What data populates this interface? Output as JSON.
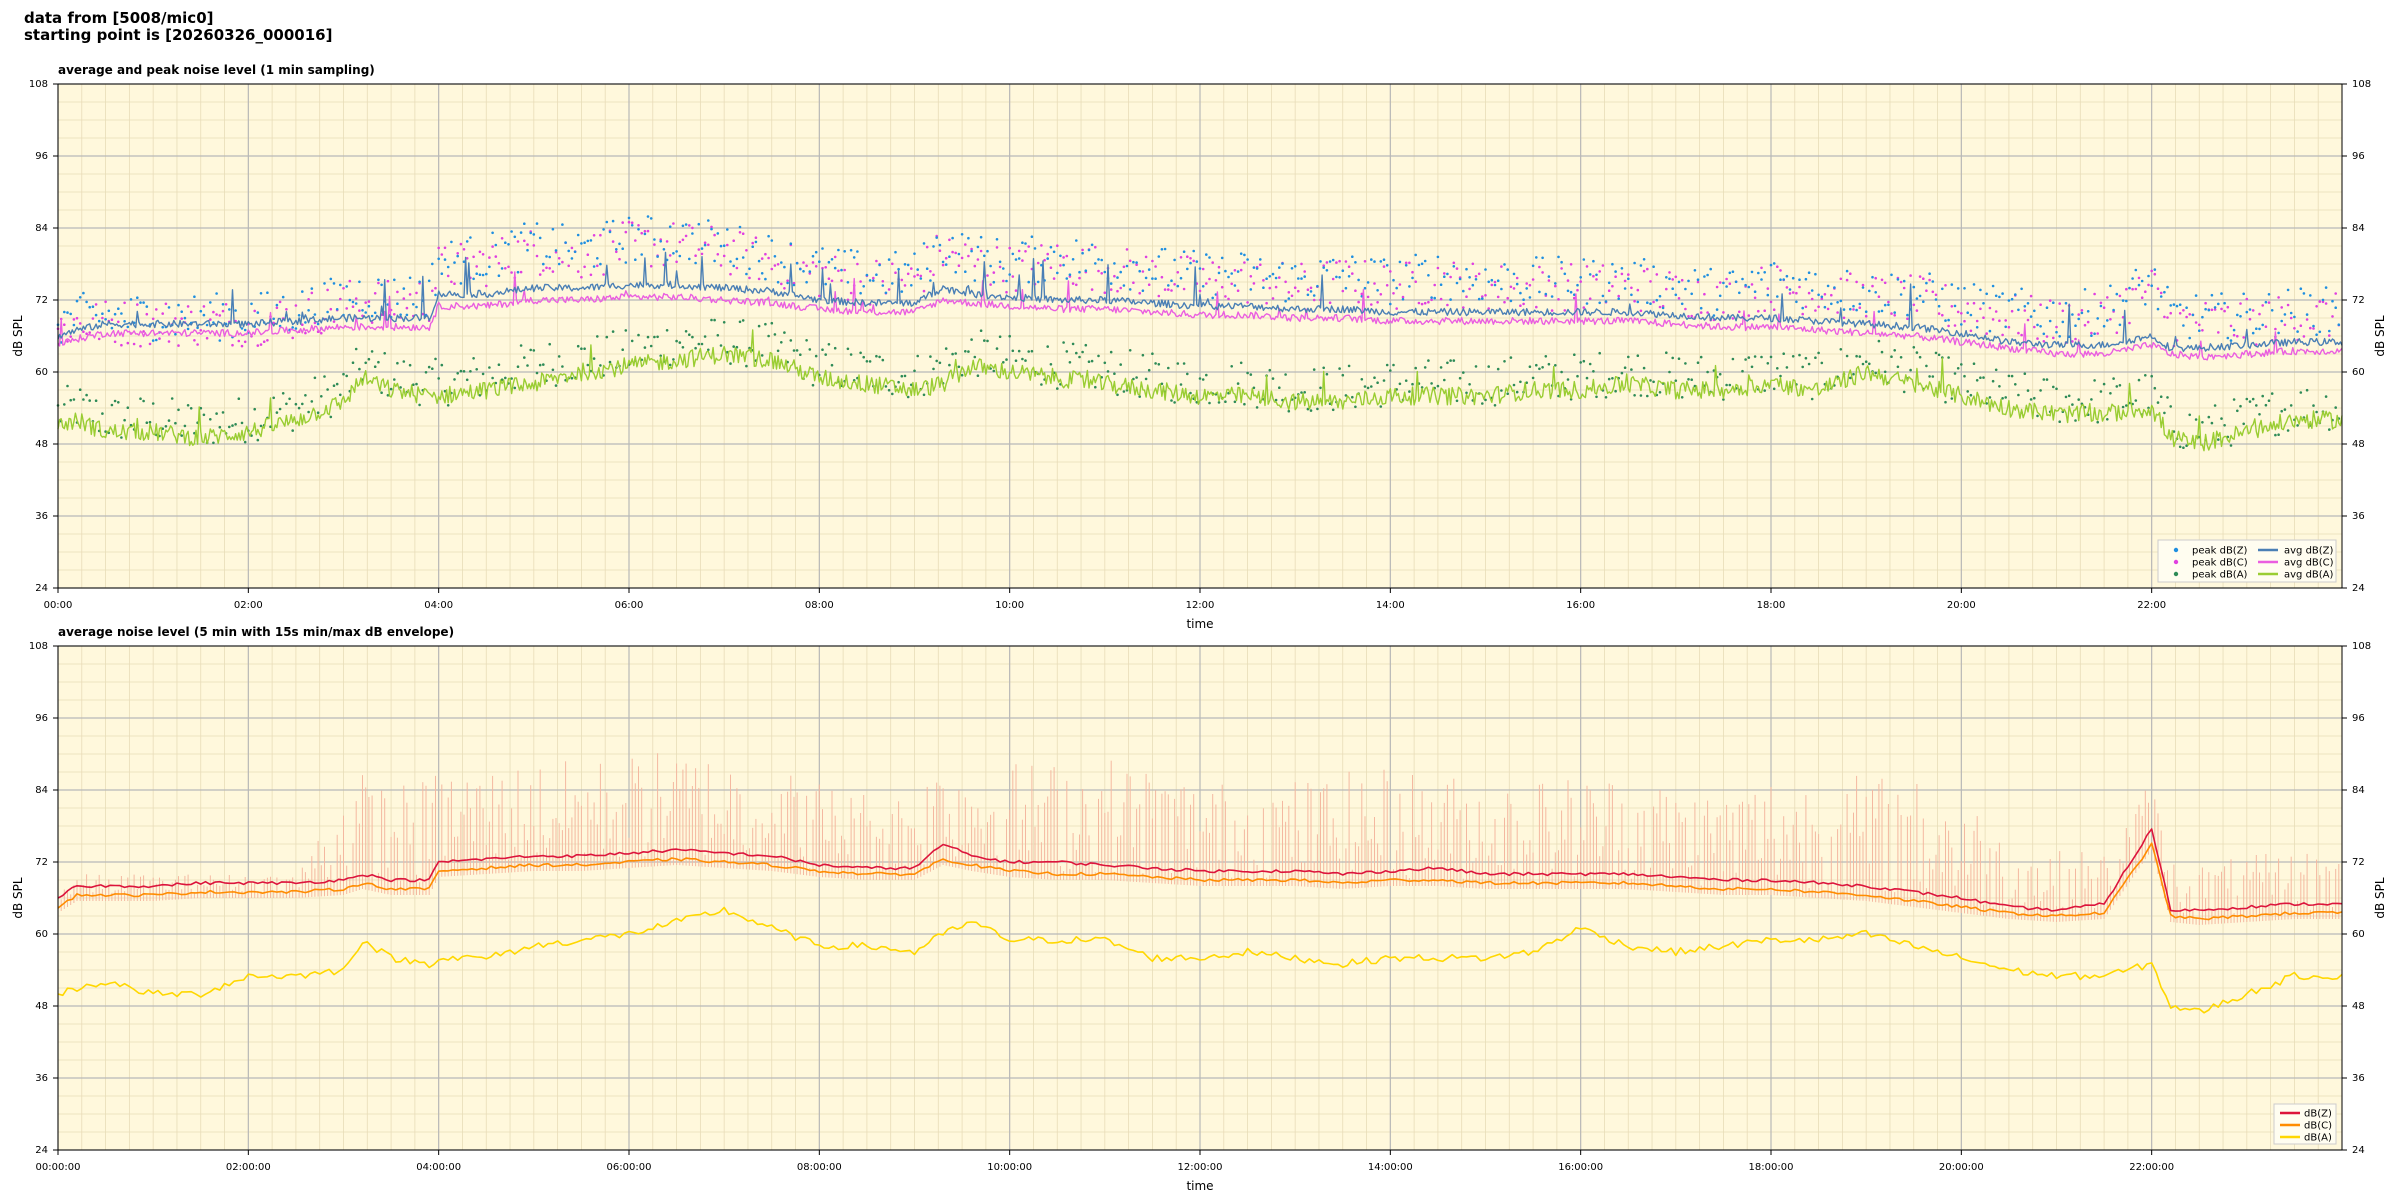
{
  "header": {
    "line1": "data from [5008/mic0]",
    "line2": "starting point is [20260326_000016]"
  },
  "colors": {
    "plot_bg": "#fff8dc",
    "grid_major": "#b8b8b8",
    "grid_minor": "#e8dcb8",
    "peakZ": "#1f8fe0",
    "peakC": "#e040e0",
    "peakA": "#2e8b57",
    "avgZ": "#4a7fb5",
    "avgC": "#ea5ee0",
    "avgA": "#9acd32",
    "dBZ": "#dc143c",
    "dBC": "#ff8c00",
    "dBA": "#ffd700",
    "envelope": "#f4b8a0"
  },
  "chart_data": [
    {
      "type": "line",
      "title": "average and peak noise level (1 min sampling)",
      "xlabel": "time",
      "ylabel": "dB SPL",
      "ylim": [
        24,
        108
      ],
      "yticks": [
        "24",
        "36",
        "48",
        "60",
        "72",
        "84",
        "96",
        "108"
      ],
      "xlim_hours": [
        0,
        24
      ],
      "xticks": [
        "00:00",
        "02:00",
        "04:00",
        "06:00",
        "08:00",
        "10:00",
        "12:00",
        "14:00",
        "16:00",
        "18:00",
        "20:00",
        "22:00"
      ],
      "grid": true,
      "legend_position": "bottom-right",
      "legend": [
        "peak dB(Z)",
        "peak dB(C)",
        "peak dB(A)",
        "avg dB(Z)",
        "avg dB(C)",
        "avg dB(A)"
      ],
      "x_hours": [
        0,
        0.2,
        0.5,
        1,
        1.5,
        2,
        2.5,
        3,
        3.2,
        3.5,
        3.9,
        4,
        4.5,
        5,
        5.5,
        6,
        6.5,
        7,
        7.5,
        8,
        8.5,
        9,
        9.3,
        9.6,
        10,
        10.5,
        11,
        11.5,
        12,
        12.5,
        13,
        13.5,
        14,
        14.5,
        15,
        15.5,
        16,
        16.5,
        17,
        17.5,
        18,
        18.5,
        19,
        19.5,
        20,
        20.5,
        21,
        21.5,
        22,
        22.2,
        22.5,
        23,
        23.5,
        24
      ],
      "series": [
        {
          "name": "avg dB(Z)",
          "values": [
            66,
            67,
            68,
            68,
            68,
            68,
            68.5,
            69,
            69,
            69,
            69,
            73,
            73,
            74,
            74,
            74.5,
            74.5,
            74,
            73.5,
            72,
            71.5,
            71.5,
            74,
            73,
            72.5,
            72,
            72,
            71.5,
            71,
            71,
            70.5,
            70.5,
            70,
            70,
            70,
            70,
            70,
            70,
            69.5,
            69,
            69,
            68.5,
            68,
            67.5,
            66.5,
            65,
            64.5,
            64.5,
            66,
            64,
            64,
            64.5,
            65,
            65
          ]
        },
        {
          "name": "avg dB(C)",
          "values": [
            64.5,
            65.5,
            66.5,
            66.5,
            66.5,
            66.5,
            67,
            67.5,
            67.5,
            67.5,
            67.5,
            71,
            71,
            72,
            72,
            72.5,
            72.5,
            72,
            71.5,
            70.5,
            70,
            70,
            72,
            71.5,
            71,
            70.5,
            70.5,
            70,
            69.5,
            69.5,
            69,
            69,
            68.5,
            68.5,
            68.5,
            68.5,
            68.5,
            68.5,
            68,
            67.5,
            67.5,
            67,
            66.5,
            66,
            65,
            64,
            63,
            63,
            64.5,
            63,
            62.5,
            63,
            63.5,
            63.5
          ]
        },
        {
          "name": "avg dB(A)",
          "values": [
            51,
            52,
            50,
            50,
            49,
            50,
            52,
            55,
            59,
            57,
            56,
            56,
            57,
            58,
            60,
            61,
            62,
            63,
            62,
            59,
            58,
            57,
            58,
            61,
            60,
            59,
            58,
            57,
            56,
            56,
            55,
            55,
            56,
            56,
            56,
            57,
            57,
            58,
            57,
            57,
            58,
            57,
            60,
            58,
            56,
            54,
            53,
            53,
            54,
            49,
            48,
            50,
            52,
            52
          ]
        },
        {
          "name": "peak dB(Z)",
          "values": [
            69,
            70,
            70,
            70,
            70,
            70,
            71,
            73,
            74,
            73,
            74,
            79,
            80,
            82,
            81,
            83,
            83,
            82,
            80,
            78,
            77,
            77,
            82,
            80,
            79,
            80,
            79,
            78,
            77,
            77,
            76,
            77,
            76,
            77,
            76,
            76,
            76,
            76,
            75,
            74,
            76,
            75,
            74,
            74,
            72,
            71,
            70,
            71,
            76,
            70,
            70,
            70,
            71,
            71
          ]
        },
        {
          "name": "peak dB(C)",
          "values": [
            68,
            69,
            69,
            69,
            69,
            69,
            70,
            72,
            73,
            72,
            73,
            78,
            79,
            81,
            80,
            82,
            82,
            81,
            79,
            77,
            76,
            76,
            81,
            79,
            78,
            79,
            78,
            77,
            76,
            76,
            75,
            76,
            75,
            76,
            75,
            75,
            75,
            75,
            74,
            73,
            75,
            74,
            73,
            73,
            71,
            70,
            69,
            70,
            75,
            69,
            69,
            69,
            70,
            70
          ]
        },
        {
          "name": "peak dB(A)",
          "values": [
            54,
            55,
            53,
            53,
            52,
            53,
            55,
            58,
            62,
            60,
            59,
            59,
            60,
            62,
            63,
            64,
            66,
            66,
            65,
            62,
            61,
            60,
            62,
            64,
            63,
            62,
            61,
            60,
            59,
            59,
            58,
            58,
            59,
            59,
            59,
            60,
            60,
            61,
            60,
            60,
            61,
            60,
            63,
            61,
            59,
            57,
            56,
            56,
            57,
            52,
            51,
            53,
            55,
            55
          ]
        }
      ]
    },
    {
      "type": "line",
      "title": "average noise level (5 min with 15s min/max dB envelope)",
      "xlabel": "time",
      "ylabel": "dB SPL",
      "ylim": [
        24,
        108
      ],
      "yticks": [
        "24",
        "36",
        "48",
        "60",
        "72",
        "84",
        "96",
        "108"
      ],
      "xlim_hours": [
        0,
        24
      ],
      "xticks": [
        "00:00:00",
        "02:00:00",
        "04:00:00",
        "06:00:00",
        "08:00:00",
        "10:00:00",
        "12:00:00",
        "14:00:00",
        "16:00:00",
        "18:00:00",
        "20:00:00",
        "22:00:00"
      ],
      "grid": true,
      "legend_position": "bottom-right",
      "legend": [
        "dB(Z)",
        "dB(C)",
        "dB(A)"
      ],
      "x_hours": [
        0,
        0.2,
        0.5,
        1,
        1.5,
        2,
        2.5,
        3,
        3.2,
        3.5,
        3.9,
        4,
        4.5,
        5,
        5.5,
        6,
        6.5,
        7,
        7.5,
        8,
        8.5,
        9,
        9.3,
        9.6,
        10,
        10.5,
        11,
        11.5,
        12,
        12.5,
        13,
        13.5,
        14,
        14.5,
        15,
        15.5,
        16,
        16.5,
        17,
        17.5,
        18,
        18.5,
        19,
        19.5,
        20,
        20.5,
        21,
        21.5,
        22,
        22.2,
        22.5,
        23,
        23.5,
        24
      ],
      "series": [
        {
          "name": "dB(Z)",
          "values": [
            66,
            68,
            68,
            68,
            68.5,
            68.5,
            68.5,
            69,
            70,
            69,
            69,
            72,
            72.5,
            73,
            73,
            73.5,
            74,
            73.5,
            73,
            71.5,
            71,
            71,
            75,
            73,
            72,
            72,
            71.5,
            71,
            70.5,
            70.5,
            70.5,
            70,
            70.5,
            71,
            70,
            70,
            70,
            70,
            69.5,
            69,
            69,
            68.5,
            68,
            67,
            66,
            64.5,
            64,
            65,
            77.5,
            64,
            64,
            64.5,
            65,
            65
          ]
        },
        {
          "name": "dB(C)",
          "values": [
            64.5,
            66.5,
            66.5,
            66.5,
            67,
            67,
            67,
            67.5,
            68.5,
            67.5,
            67.5,
            70.5,
            71,
            71.5,
            71.5,
            72,
            72.5,
            72,
            71.5,
            70.5,
            70,
            70,
            72.5,
            71.5,
            70.5,
            70,
            70,
            69.5,
            69,
            69,
            69,
            68.5,
            69,
            69,
            68.5,
            68.5,
            68.5,
            68.5,
            68,
            67.5,
            67.5,
            67,
            66.5,
            65.5,
            64.5,
            63.5,
            63,
            63.5,
            75,
            63,
            62.5,
            63,
            63.5,
            63.5
          ]
        },
        {
          "name": "dB(A)",
          "values": [
            50,
            51,
            52,
            50,
            50,
            53,
            53,
            54,
            59,
            56,
            55,
            56,
            56,
            58,
            59,
            60,
            62,
            64,
            61,
            58,
            58,
            57,
            60,
            62,
            59,
            59,
            59,
            56,
            56,
            57,
            56,
            55,
            56,
            56,
            56,
            57,
            61,
            58,
            57,
            58,
            59,
            59,
            60,
            58,
            56,
            54,
            53,
            53,
            55,
            48,
            47,
            50,
            53,
            53
          ]
        },
        {
          "name": "max envelope",
          "values": [
            68,
            70,
            70,
            70,
            70,
            70,
            70,
            85,
            87,
            85,
            86,
            88,
            88,
            89,
            89,
            90,
            91,
            90,
            88,
            86,
            84,
            84,
            91,
            89,
            89,
            89,
            90,
            88,
            86,
            85,
            86,
            87,
            88,
            87,
            86,
            86,
            87,
            87,
            85,
            84,
            87,
            86,
            87,
            86,
            84,
            76,
            74,
            74,
            86,
            73,
            72,
            73,
            74,
            74
          ]
        }
      ]
    }
  ]
}
